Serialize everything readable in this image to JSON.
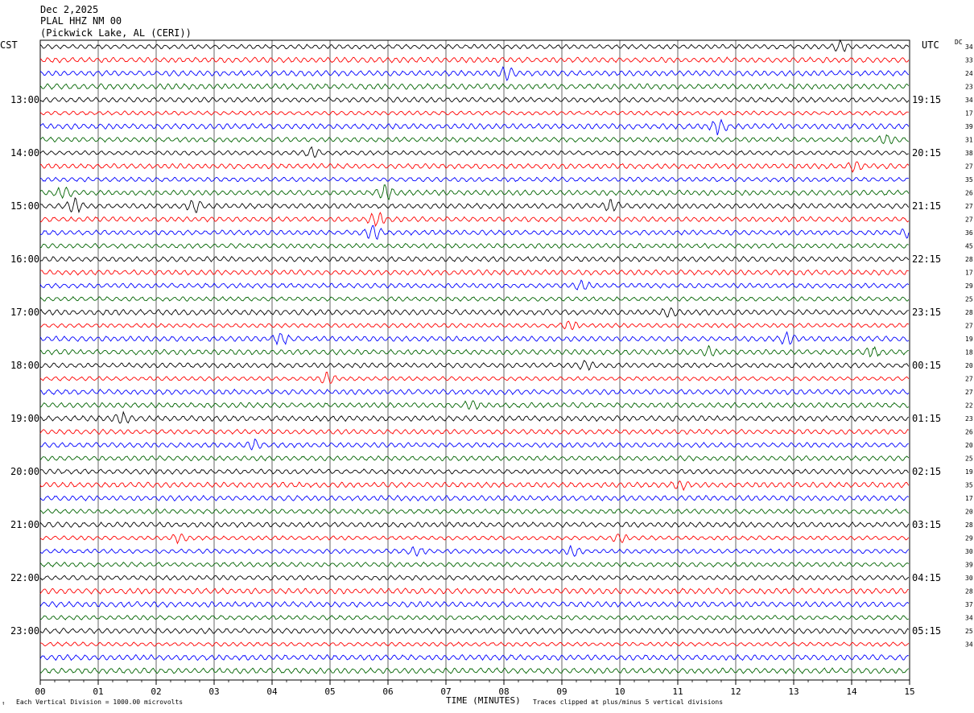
{
  "header": {
    "date": "Dec 2,2025",
    "station": "PLAL HHZ NM 00",
    "location": "(Pickwick Lake, AL (CERI))"
  },
  "labels": {
    "left_tz": "CST",
    "right_tz": "UTC",
    "dc_label": "DC",
    "x_axis_title": "TIME (MINUTES)",
    "scale_note": "Each Vertical Division = 1000.00 microvolts",
    "clip_note": "Traces clipped at plus/minus 5 vertical divisions"
  },
  "colors": {
    "trace_cycle": [
      "#000000",
      "#ff0000",
      "#0000ff",
      "#006400"
    ],
    "grid": "#000000",
    "background": "#ffffff"
  },
  "chart_data": {
    "type": "line",
    "title": "",
    "xlabel": "TIME (MINUTES)",
    "ylabel": "",
    "xlim": [
      0,
      15
    ],
    "x_tick_labels": [
      "00",
      "01",
      "02",
      "03",
      "04",
      "05",
      "06",
      "07",
      "08",
      "09",
      "10",
      "11",
      "12",
      "13",
      "14",
      "15"
    ],
    "grid": true,
    "rows": 48,
    "minutes_per_row": 15,
    "left_hour_labels": [
      "13:00",
      "14:00",
      "15:00",
      "16:00",
      "17:00",
      "18:00",
      "19:00",
      "20:00",
      "21:00",
      "22:00",
      "23:00"
    ],
    "right_hour_labels": [
      "19:15",
      "20:15",
      "21:15",
      "22:15",
      "23:15",
      "00:15",
      "01:15",
      "02:15",
      "03:15",
      "04:15",
      "05:15"
    ],
    "hour_label_first_row": 4,
    "hour_label_every_rows": 4,
    "dc_offsets": [
      34,
      33,
      24,
      23,
      34,
      17,
      39,
      31,
      38,
      27,
      35,
      26,
      27,
      27,
      36,
      45,
      28,
      17,
      29,
      25,
      28,
      27,
      19,
      18,
      20,
      27,
      27,
      22,
      23,
      26,
      20,
      25,
      19,
      35,
      17,
      20,
      28,
      29,
      30,
      39,
      30,
      28,
      37,
      34,
      25,
      34
    ],
    "events": [
      {
        "row": 0,
        "minute": 13.8,
        "amplitude": 1.6
      },
      {
        "row": 2,
        "minute": 8.05,
        "amplitude": 1.8
      },
      {
        "row": 6,
        "minute": 11.7,
        "amplitude": 2.0
      },
      {
        "row": 7,
        "minute": 14.6,
        "amplitude": 1.4
      },
      {
        "row": 8,
        "minute": 4.7,
        "amplitude": 1.5
      },
      {
        "row": 9,
        "minute": 14.05,
        "amplitude": 1.3
      },
      {
        "row": 11,
        "minute": 5.95,
        "amplitude": 2.2
      },
      {
        "row": 11,
        "minute": 0.4,
        "amplitude": 1.5
      },
      {
        "row": 12,
        "minute": 0.6,
        "amplitude": 2.0
      },
      {
        "row": 12,
        "minute": 2.65,
        "amplitude": 2.0
      },
      {
        "row": 12,
        "minute": 9.85,
        "amplitude": 1.6
      },
      {
        "row": 13,
        "minute": 5.8,
        "amplitude": 2.0
      },
      {
        "row": 14,
        "minute": 5.75,
        "amplitude": 2.2
      },
      {
        "row": 14,
        "minute": 15.0,
        "amplitude": 1.5
      },
      {
        "row": 18,
        "minute": 9.35,
        "amplitude": 1.3
      },
      {
        "row": 20,
        "minute": 10.85,
        "amplitude": 1.5
      },
      {
        "row": 21,
        "minute": 9.15,
        "amplitude": 1.5
      },
      {
        "row": 22,
        "minute": 4.15,
        "amplitude": 1.6
      },
      {
        "row": 22,
        "minute": 12.9,
        "amplitude": 1.8
      },
      {
        "row": 23,
        "minute": 11.55,
        "amplitude": 1.5
      },
      {
        "row": 23,
        "minute": 14.35,
        "amplitude": 1.3
      },
      {
        "row": 24,
        "minute": 9.4,
        "amplitude": 1.3
      },
      {
        "row": 25,
        "minute": 4.95,
        "amplitude": 1.6
      },
      {
        "row": 27,
        "minute": 7.45,
        "amplitude": 1.3
      },
      {
        "row": 28,
        "minute": 1.4,
        "amplitude": 1.7
      },
      {
        "row": 30,
        "minute": 3.7,
        "amplitude": 1.5
      },
      {
        "row": 33,
        "minute": 11.05,
        "amplitude": 1.2
      },
      {
        "row": 37,
        "minute": 2.4,
        "amplitude": 1.5
      },
      {
        "row": 37,
        "minute": 10.0,
        "amplitude": 1.3
      },
      {
        "row": 38,
        "minute": 6.5,
        "amplitude": 1.3
      },
      {
        "row": 38,
        "minute": 9.2,
        "amplitude": 1.4
      }
    ]
  }
}
